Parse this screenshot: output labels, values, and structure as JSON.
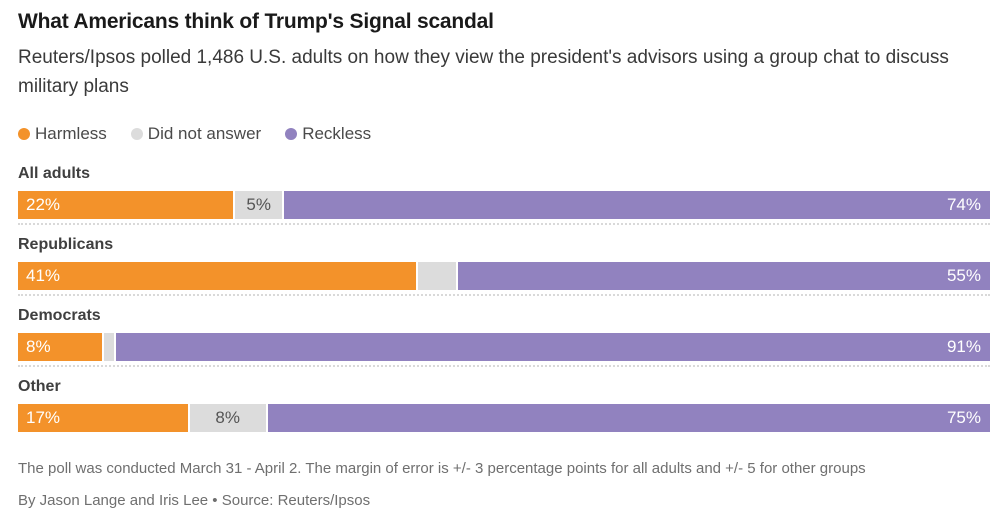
{
  "title": "What Americans think of Trump's Signal scandal",
  "subtitle": "Reuters/Ipsos polled 1,486 U.S. adults on how they view the president's advisors using a group chat to discuss military plans",
  "legend": [
    {
      "label": "Harmless",
      "color": "#f3922a"
    },
    {
      "label": "Did not answer",
      "color": "#dcdcdc"
    },
    {
      "label": "Reckless",
      "color": "#9182bf"
    }
  ],
  "chart_data": {
    "type": "bar",
    "orientation": "horizontal-stacked",
    "title": "What Americans think of Trump's Signal scandal",
    "categories": [
      "All adults",
      "Republicans",
      "Democrats",
      "Other"
    ],
    "series": [
      {
        "name": "Harmless",
        "color": "#f3922a",
        "values": [
          22,
          41,
          8,
          17
        ]
      },
      {
        "name": "Did not answer",
        "color": "#dcdcdc",
        "values": [
          5,
          4,
          1,
          8
        ]
      },
      {
        "name": "Reckless",
        "color": "#9182bf",
        "values": [
          74,
          55,
          91,
          75
        ]
      }
    ],
    "value_unit": "%",
    "xlim": [
      0,
      100
    ],
    "grid": false,
    "legend_position": "top"
  },
  "rows": [
    {
      "category": "All adults",
      "separator": true,
      "segments": [
        {
          "series": "Harmless",
          "value": 22,
          "label": "22%"
        },
        {
          "series": "Did not answer",
          "value": 5,
          "label": "5%"
        },
        {
          "series": "Reckless",
          "value": 74,
          "label": "74%"
        }
      ]
    },
    {
      "category": "Republicans",
      "separator": true,
      "segments": [
        {
          "series": "Harmless",
          "value": 41,
          "label": "41%"
        },
        {
          "series": "Did not answer",
          "value": 4,
          "label": ""
        },
        {
          "series": "Reckless",
          "value": 55,
          "label": "55%"
        }
      ]
    },
    {
      "category": "Democrats",
      "separator": true,
      "segments": [
        {
          "series": "Harmless",
          "value": 8,
          "label": "8%"
        },
        {
          "series": "Did not answer",
          "value": 1,
          "label": ""
        },
        {
          "series": "Reckless",
          "value": 91,
          "label": "91%"
        }
      ]
    },
    {
      "category": "Other",
      "separator": false,
      "segments": [
        {
          "series": "Harmless",
          "value": 17,
          "label": "17%"
        },
        {
          "series": "Did not answer",
          "value": 8,
          "label": "8%"
        },
        {
          "series": "Reckless",
          "value": 75,
          "label": "75%"
        }
      ]
    }
  ],
  "notes": {
    "methodology": "The poll was conducted March 31 - April 2. The margin of error is +/- 3 percentage points for all adults and +/- 5 for other groups",
    "byline": "By Jason Lange and Iris Lee • Source: Reuters/Ipsos"
  }
}
